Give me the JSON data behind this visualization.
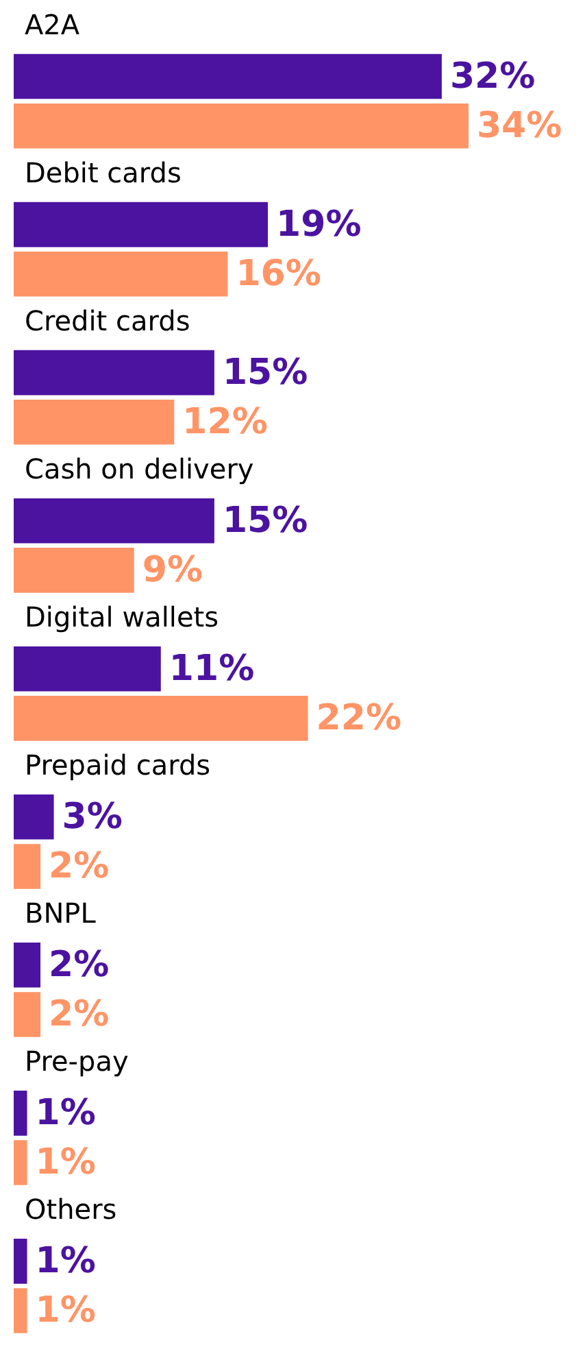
{
  "chart_data": {
    "type": "bar",
    "orientation": "horizontal",
    "categories": [
      "A2A",
      "Debit cards",
      "Credit cards",
      "Cash on delivery",
      "Digital wallets",
      "Prepaid cards",
      "BNPL",
      "Pre-pay",
      "Others"
    ],
    "series": [
      {
        "color": "#4b13a0",
        "values": [
          32,
          19,
          15,
          15,
          11,
          3,
          2,
          1,
          1
        ],
        "value_labels": [
          "32%",
          "19%",
          "15%",
          "15%",
          "11%",
          "3%",
          "2%",
          "1%",
          "1%"
        ]
      },
      {
        "color": "#ff9466",
        "values": [
          34,
          16,
          12,
          9,
          22,
          2,
          2,
          1,
          1
        ],
        "value_labels": [
          "34%",
          "16%",
          "12%",
          "9%",
          "22%",
          "2%",
          "2%",
          "1%",
          "1%"
        ]
      }
    ],
    "grid": false
  }
}
